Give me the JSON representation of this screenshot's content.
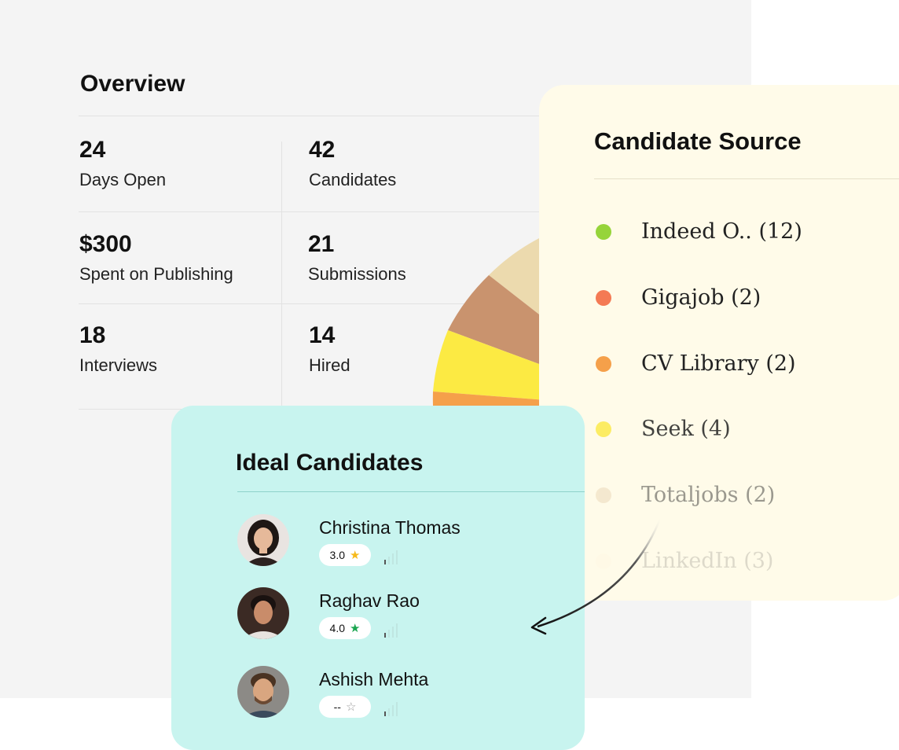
{
  "overview": {
    "title": "Overview",
    "stats": [
      {
        "value": "24",
        "label": "Days Open"
      },
      {
        "value": "42",
        "label": "Candidates"
      },
      {
        "value": "$300",
        "label": "Spent on Publishing"
      },
      {
        "value": "21",
        "label": "Submissions"
      },
      {
        "value": "18",
        "label": "Interviews"
      },
      {
        "value": "14",
        "label": "Hired"
      }
    ]
  },
  "candidate_source": {
    "title": "Candidate Source",
    "items": [
      {
        "label": "Indeed O.. (12)",
        "color": "#96d43a"
      },
      {
        "label": "Gigajob (2)",
        "color": "#f47a54"
      },
      {
        "label": "CV Library (2)",
        "color": "#f5a04a"
      },
      {
        "label": "Seek (4)",
        "color": "#fcea4c"
      },
      {
        "label": "Totaljobs (2)",
        "color": "#e8d3b0"
      },
      {
        "label": "LinkedIn (3)",
        "color": "#fff3d6"
      }
    ],
    "pie_colors": [
      "#ecdaae",
      "#c9936e",
      "#fcea43",
      "#f5a04a"
    ]
  },
  "ideal_candidates": {
    "title": "Ideal Candidates",
    "candidates": [
      {
        "name": "Christina Thomas",
        "rating": "3.0",
        "star_color": "#f6b91a",
        "star": "★"
      },
      {
        "name": "Raghav Rao",
        "rating": "4.0",
        "star_color": "#1aa650",
        "star": "★"
      },
      {
        "name": "Ashish Mehta",
        "rating": "--",
        "star_color": "#9a9a9a",
        "star": "☆"
      }
    ]
  }
}
